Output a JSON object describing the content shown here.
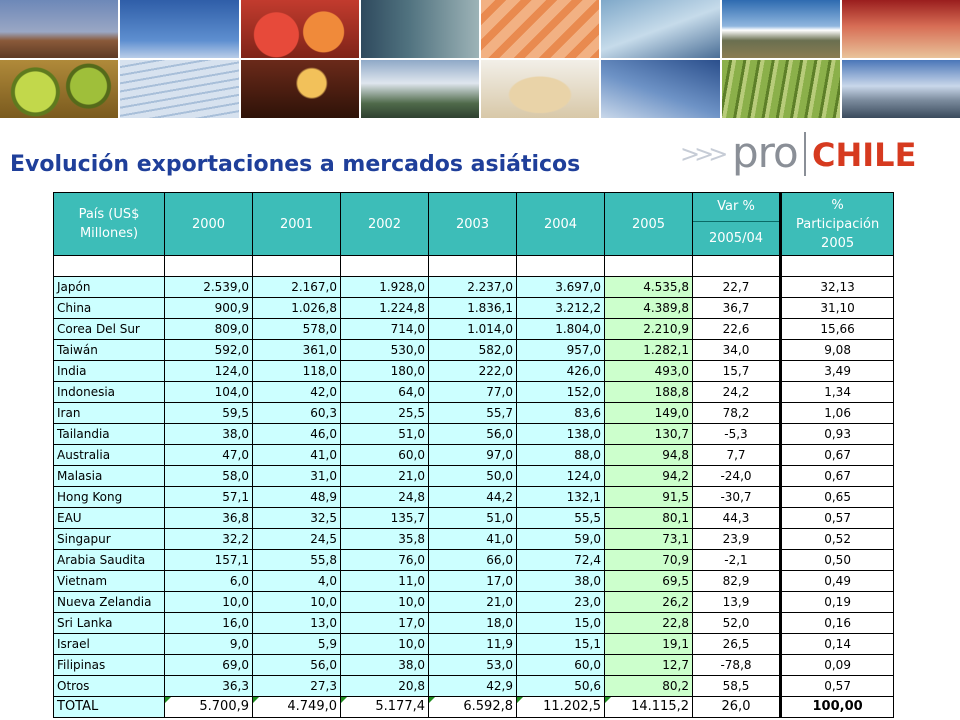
{
  "title": "Evolución exportaciones a mercados asiáticos",
  "logo": {
    "pro": "pro",
    "chile": "CHILE",
    "arrows": ">>>"
  },
  "colors": {
    "header": "#3dbdb8",
    "cell": "#ccffff",
    "col2005": "#ccffcc",
    "title": "#1f3f9a",
    "logo_red": "#d63a1f"
  },
  "table": {
    "headers": {
      "country": "País (US$ Millones)",
      "y2000": "2000",
      "y2001": "2001",
      "y2002": "2002",
      "y2003": "2003",
      "y2004": "2004",
      "y2005": "2005",
      "var_top": "Var %",
      "var_bottom": "2005/04",
      "participation": "% Participación 2005"
    },
    "rows": [
      {
        "country": "Japón",
        "v2000": "2.539,0",
        "v2001": "2.167,0",
        "v2002": "1.928,0",
        "v2003": "2.237,0",
        "v2004": "3.697,0",
        "v2005": "4.535,8",
        "var": "22,7",
        "part": "32,13"
      },
      {
        "country": "China",
        "v2000": "900,9",
        "v2001": "1.026,8",
        "v2002": "1.224,8",
        "v2003": "1.836,1",
        "v2004": "3.212,2",
        "v2005": "4.389,8",
        "var": "36,7",
        "part": "31,10"
      },
      {
        "country": "Corea Del Sur",
        "v2000": "809,0",
        "v2001": "578,0",
        "v2002": "714,0",
        "v2003": "1.014,0",
        "v2004": "1.804,0",
        "v2005": "2.210,9",
        "var": "22,6",
        "part": "15,66"
      },
      {
        "country": "Taiwán",
        "v2000": "592,0",
        "v2001": "361,0",
        "v2002": "530,0",
        "v2003": "582,0",
        "v2004": "957,0",
        "v2005": "1.282,1",
        "var": "34,0",
        "part": "9,08"
      },
      {
        "country": "India",
        "v2000": "124,0",
        "v2001": "118,0",
        "v2002": "180,0",
        "v2003": "222,0",
        "v2004": "426,0",
        "v2005": "493,0",
        "var": "15,7",
        "part": "3,49"
      },
      {
        "country": "Indonesia",
        "v2000": "104,0",
        "v2001": "42,0",
        "v2002": "64,0",
        "v2003": "77,0",
        "v2004": "152,0",
        "v2005": "188,8",
        "var": "24,2",
        "part": "1,34"
      },
      {
        "country": "Iran",
        "v2000": "59,5",
        "v2001": "60,3",
        "v2002": "25,5",
        "v2003": "55,7",
        "v2004": "83,6",
        "v2005": "149,0",
        "var": "78,2",
        "part": "1,06"
      },
      {
        "country": "Tailandia",
        "v2000": "38,0",
        "v2001": "46,0",
        "v2002": "51,0",
        "v2003": "56,0",
        "v2004": "138,0",
        "v2005": "130,7",
        "var": "-5,3",
        "part": "0,93"
      },
      {
        "country": "Australia",
        "v2000": "47,0",
        "v2001": "41,0",
        "v2002": "60,0",
        "v2003": "97,0",
        "v2004": "88,0",
        "v2005": "94,8",
        "var": "7,7",
        "part": "0,67"
      },
      {
        "country": "Malasia",
        "v2000": "58,0",
        "v2001": "31,0",
        "v2002": "21,0",
        "v2003": "50,0",
        "v2004": "124,0",
        "v2005": "94,2",
        "var": "-24,0",
        "part": "0,67"
      },
      {
        "country": "Hong Kong",
        "v2000": "57,1",
        "v2001": "48,9",
        "v2002": "24,8",
        "v2003": "44,2",
        "v2004": "132,1",
        "v2005": "91,5",
        "var": "-30,7",
        "part": "0,65"
      },
      {
        "country": "EAU",
        "v2000": "36,8",
        "v2001": "32,5",
        "v2002": "135,7",
        "v2003": "51,0",
        "v2004": "55,5",
        "v2005": "80,1",
        "var": "44,3",
        "part": "0,57"
      },
      {
        "country": "Singapur",
        "v2000": "32,2",
        "v2001": "24,5",
        "v2002": "35,8",
        "v2003": "41,0",
        "v2004": "59,0",
        "v2005": "73,1",
        "var": "23,9",
        "part": "0,52"
      },
      {
        "country": "Arabia Saudita",
        "v2000": "157,1",
        "v2001": "55,8",
        "v2002": "76,0",
        "v2003": "66,0",
        "v2004": "72,4",
        "v2005": "70,9",
        "var": "-2,1",
        "part": "0,50"
      },
      {
        "country": "Vietnam",
        "v2000": "6,0",
        "v2001": "4,0",
        "v2002": "11,0",
        "v2003": "17,0",
        "v2004": "38,0",
        "v2005": "69,5",
        "var": "82,9",
        "part": "0,49"
      },
      {
        "country": "Nueva Zelandia",
        "v2000": "10,0",
        "v2001": "10,0",
        "v2002": "10,0",
        "v2003": "21,0",
        "v2004": "23,0",
        "v2005": "26,2",
        "var": "13,9",
        "part": "0,19"
      },
      {
        "country": "Sri Lanka",
        "v2000": "16,0",
        "v2001": "13,0",
        "v2002": "17,0",
        "v2003": "18,0",
        "v2004": "15,0",
        "v2005": "22,8",
        "var": "52,0",
        "part": "0,16"
      },
      {
        "country": "Israel",
        "v2000": "9,0",
        "v2001": "5,9",
        "v2002": "10,0",
        "v2003": "11,9",
        "v2004": "15,1",
        "v2005": "19,1",
        "var": "26,5",
        "part": "0,14"
      },
      {
        "country": "Filipinas",
        "v2000": "69,0",
        "v2001": "56,0",
        "v2002": "38,0",
        "v2003": "53,0",
        "v2004": "60,0",
        "v2005": "12,7",
        "var": "-78,8",
        "part": "0,09"
      },
      {
        "country": "Otros",
        "v2000": "36,3",
        "v2001": "27,3",
        "v2002": "20,8",
        "v2003": "42,9",
        "v2004": "50,6",
        "v2005": "80,2",
        "var": "58,5",
        "part": "0,57"
      }
    ],
    "total": {
      "country": "TOTAL",
      "v2000": "5.700,9",
      "v2001": "4.749,0",
      "v2002": "5.177,4",
      "v2003": "6.592,8",
      "v2004": "11.202,5",
      "v2005": "14.115,2",
      "var": "26,0",
      "part": "100,00"
    }
  }
}
